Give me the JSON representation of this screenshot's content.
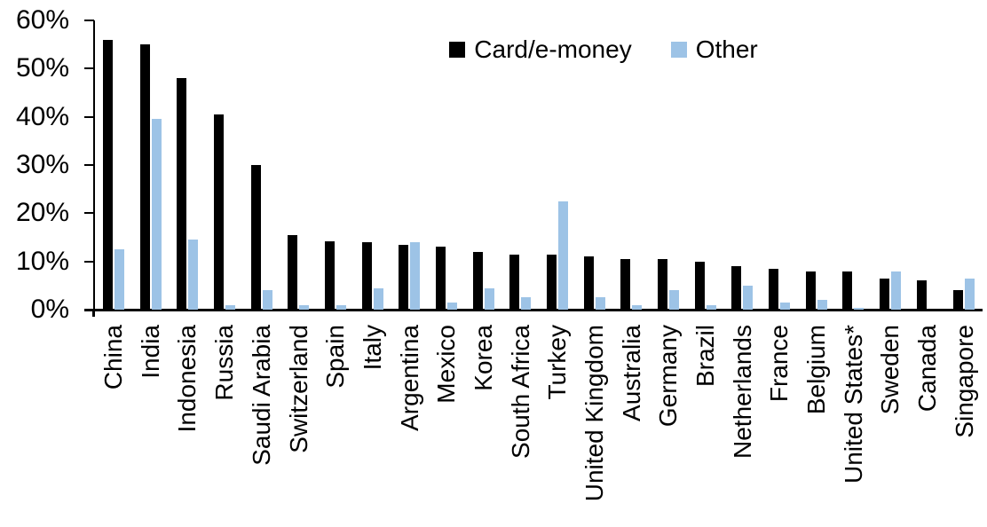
{
  "chart_data": {
    "type": "bar",
    "title": "",
    "xlabel": "",
    "ylabel": "",
    "categories": [
      "China",
      "India",
      "Indonesia",
      "Russia",
      "Saudi Arabia",
      "Switzerland",
      "Spain",
      "Italy",
      "Argentina",
      "Mexico",
      "Korea",
      "South Africa",
      "Turkey",
      "United Kingdom",
      "Australia",
      "Germany",
      "Brazil",
      "Netherlands",
      "France",
      "Belgium",
      "United States*",
      "Sweden",
      "Canada",
      "Singapore"
    ],
    "series": [
      {
        "name": "Card/e-money",
        "color": "#000000",
        "values": [
          56,
          55,
          48,
          40.5,
          30,
          15.5,
          14.2,
          14,
          13.5,
          13,
          12,
          11.5,
          11.5,
          11,
          10.5,
          10.5,
          10,
          9,
          8.5,
          8,
          8,
          6.5,
          6,
          4
        ]
      },
      {
        "name": "Other",
        "color": "#9DC3E6",
        "values": [
          12.5,
          39.5,
          14.5,
          1,
          4,
          1,
          1,
          4.5,
          14,
          1.5,
          4.5,
          2.5,
          22.5,
          2.5,
          1,
          4,
          1,
          5,
          1.5,
          2,
          0.3,
          8,
          0,
          6.5
        ]
      }
    ],
    "ylim": [
      0,
      60
    ],
    "ytick_labels": [
      "60%",
      "50%",
      "40%",
      "30%",
      "20%",
      "10%",
      "0%"
    ],
    "ytick_values": [
      60,
      50,
      40,
      30,
      20,
      10,
      0
    ],
    "grid": false,
    "legend_position": "top-center"
  }
}
